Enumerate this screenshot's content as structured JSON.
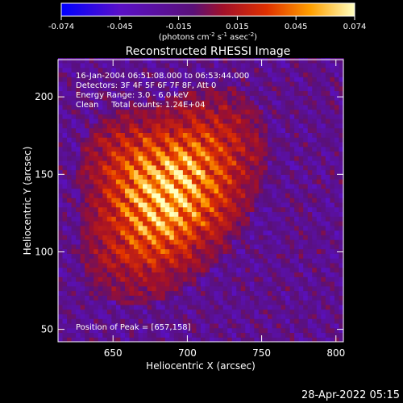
{
  "chart_data": {
    "type": "heatmap",
    "title": "Reconstructed RHESSI Image",
    "xlabel": "Heliocentric X (arcsec)",
    "ylabel": "Heliocentric Y (arcsec)",
    "xlim": [
      613,
      805
    ],
    "ylim": [
      42,
      224
    ],
    "x_ticks": [
      650,
      700,
      750,
      800
    ],
    "y_ticks": [
      50,
      100,
      150,
      200
    ],
    "colorbar": {
      "ticks": [
        "-0.074",
        "-0.045",
        "-0.015",
        "0.015",
        "0.045",
        "0.074"
      ],
      "unit_label": "(photons cm-2 s-1 asec-2)",
      "unit_parts": [
        "(photons cm",
        "-2",
        " s",
        "-1",
        " asec",
        "-2",
        ")"
      ],
      "range": [
        -0.074,
        0.074
      ]
    },
    "annotations": [
      "16-Jan-2004 06:51:08.000 to 06:53:44.000",
      "Detectors: 3F 4F 5F 6F 7F 8F, Att 0",
      "Energy Range: 3.0 - 6.0 keV",
      "Clean     Total counts: 1.24E+04"
    ],
    "peak_label": "Position of Peak = [657,158]",
    "peak": [
      657,
      158
    ],
    "source": {
      "center": [
        690,
        135
      ],
      "peak_value": 0.074
    }
  },
  "footer": {
    "timestamp": "28-Apr-2022 05:15"
  }
}
